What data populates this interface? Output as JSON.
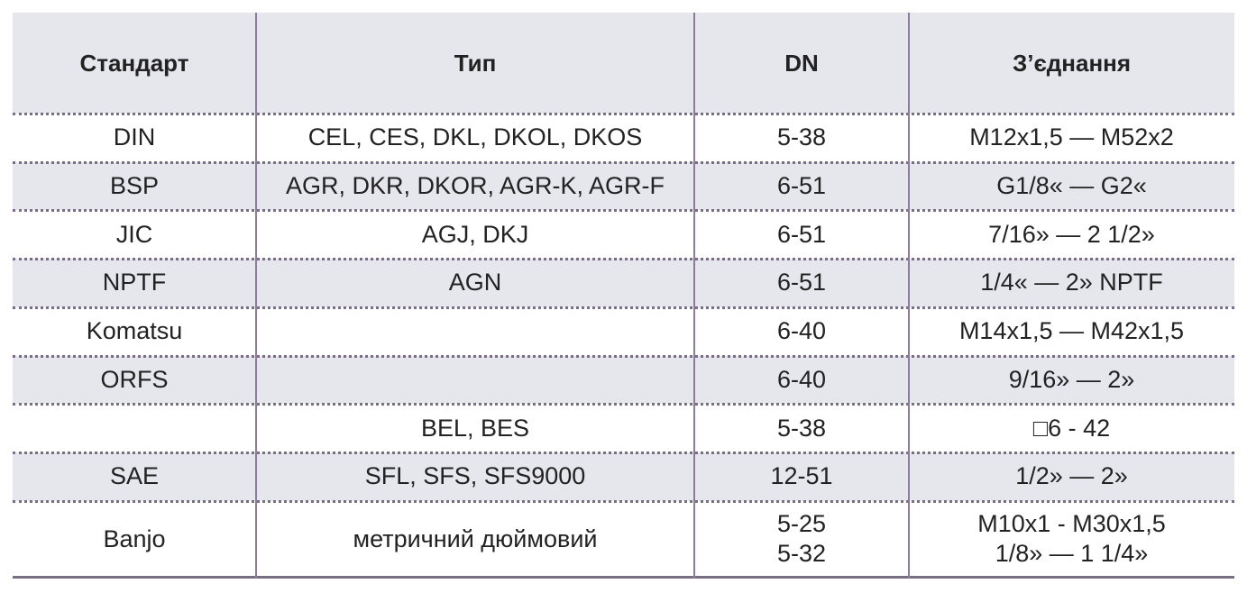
{
  "table": {
    "header": [
      "Стандарт",
      "Тип",
      "DN",
      "З’єднання"
    ],
    "rows": [
      [
        "DIN",
        "CEL, CES, DKL, DKOL, DKOS",
        "5-38",
        "M12x1,5 — M52x2"
      ],
      [
        "BSP",
        "AGR, DKR, DKOR, AGR-K, AGR-F",
        "6-51",
        "G1/8« — G2«"
      ],
      [
        "JIC",
        "AGJ, DKJ",
        "6-51",
        "7/16» — 2 1/2»"
      ],
      [
        "NPTF",
        "AGN",
        "6-51",
        "1/4« — 2» NPTF"
      ],
      [
        "Komatsu",
        null,
        "6-40",
        "M14x1,5 — M42x1,5"
      ],
      [
        "ORFS",
        null,
        "6-40",
        "9/16» — 2»"
      ],
      [
        null,
        "BEL, BES",
        "5-38",
        "□6 - 42"
      ],
      [
        "SAE",
        "SFL, SFS, SFS9000",
        "12-51",
        "1/2» — 2»"
      ],
      [
        "Banjo",
        "метричний дюймовий",
        [
          "5-25",
          "5-32"
        ],
        [
          "M10x1 - M30x1,5",
          "1/8» — 1 1/4»"
        ]
      ]
    ]
  }
}
